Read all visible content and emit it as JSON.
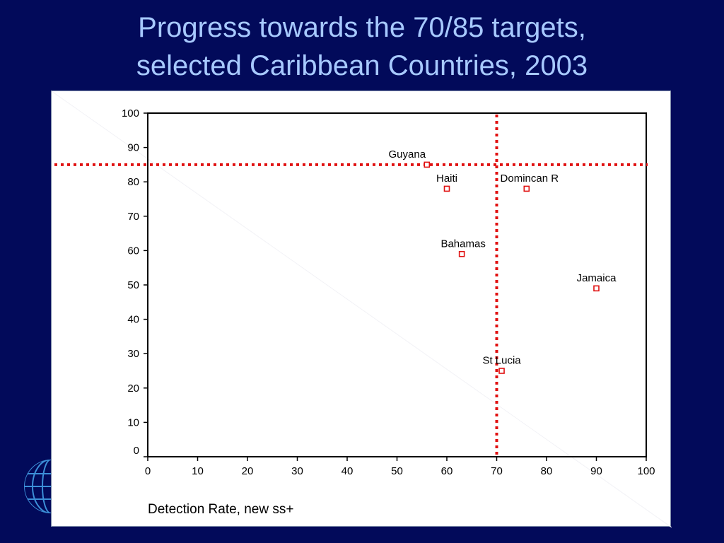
{
  "slide": {
    "title_line1": "Progress towards the 70/85 targets,",
    "title_line2": "selected Caribbean Countries, 2003"
  },
  "colors": {
    "background": "#020a5a",
    "title": "#a7c9ff",
    "target_line": "#e01010",
    "marker": "#e01010"
  },
  "icons": {
    "logo": "globe-icon"
  },
  "chart_data": {
    "type": "scatter",
    "title": "",
    "xlabel": "Detection Rate, new ss+",
    "ylabel": "",
    "xlim": [
      0,
      100
    ],
    "ylim": [
      0,
      100
    ],
    "xticks": [
      0,
      10,
      20,
      30,
      40,
      50,
      60,
      70,
      80,
      90,
      100
    ],
    "yticks": [
      0,
      10,
      20,
      30,
      40,
      50,
      60,
      70,
      80,
      90,
      100
    ],
    "grid": false,
    "reference_lines": [
      {
        "axis": "x",
        "value": 70,
        "style": "dotted"
      },
      {
        "axis": "y",
        "value": 85,
        "style": "dotted"
      }
    ],
    "points": [
      {
        "label": "Guyana",
        "x": 56,
        "y": 85
      },
      {
        "label": "Haiti",
        "x": 60,
        "y": 78
      },
      {
        "label": "Domincan R",
        "x": 76,
        "y": 78
      },
      {
        "label": "Bahamas",
        "x": 63,
        "y": 59
      },
      {
        "label": "Jamaica",
        "x": 90,
        "y": 49
      },
      {
        "label": "St Lucia",
        "x": 71,
        "y": 25
      }
    ]
  }
}
